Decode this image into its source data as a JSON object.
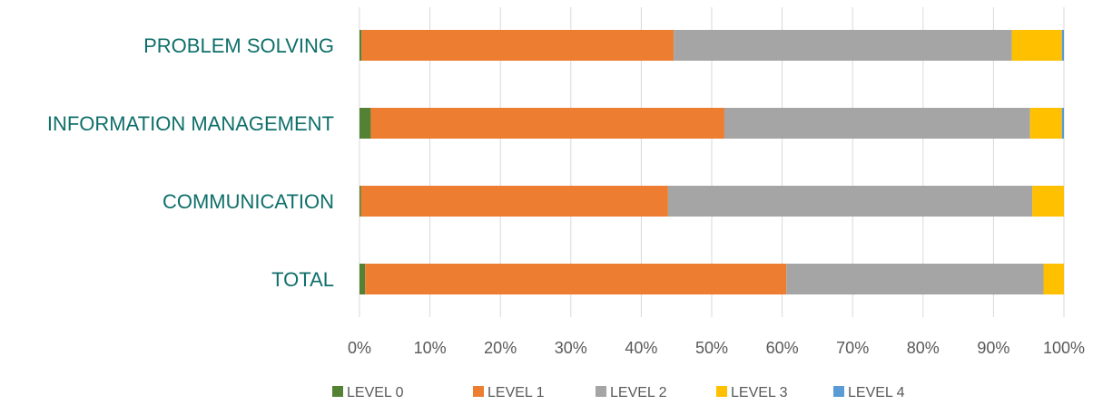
{
  "chart_data": {
    "type": "bar",
    "orientation": "horizontal",
    "stacked": "percent",
    "categories": [
      "PROBLEM SOLVING",
      "INFORMATION MANAGEMENT",
      "COMMUNICATION",
      "TOTAL"
    ],
    "series": [
      {
        "name": "LEVEL 0",
        "color": "#548235",
        "values": [
          0.3,
          1.6,
          0.2,
          0.8
        ]
      },
      {
        "name": "LEVEL 1",
        "color": "#ed7d31",
        "values": [
          44.3,
          50.2,
          43.6,
          59.8
        ]
      },
      {
        "name": "LEVEL 2",
        "color": "#a5a5a5",
        "values": [
          48.0,
          43.4,
          51.7,
          36.5
        ]
      },
      {
        "name": "LEVEL 3",
        "color": "#ffc000",
        "values": [
          7.1,
          4.5,
          4.5,
          2.9
        ]
      },
      {
        "name": "LEVEL 4",
        "color": "#5b9bd5",
        "values": [
          0.3,
          0.3,
          0.0,
          0.0
        ]
      }
    ],
    "xlim": [
      0,
      100
    ],
    "x_ticks": [
      "0%",
      "10%",
      "20%",
      "30%",
      "40%",
      "50%",
      "60%",
      "70%",
      "80%",
      "90%",
      "100%"
    ],
    "grid": true,
    "legend_position": "bottom",
    "title": "",
    "xlabel": "",
    "ylabel": ""
  }
}
